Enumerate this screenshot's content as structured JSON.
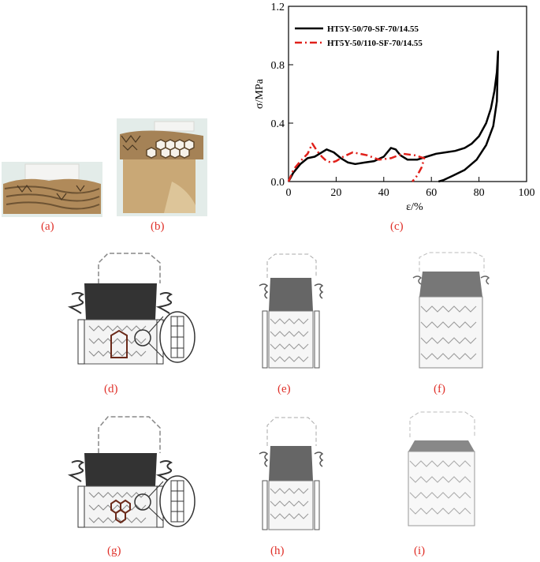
{
  "labels": {
    "a": "(a)",
    "b": "(b)",
    "c": "(c)",
    "d": "(d)",
    "e": "(e)",
    "f": "(f)",
    "g": "(g)",
    "h": "(h)",
    "i": "(i)"
  },
  "colors": {
    "label_red": "#e0312a",
    "series1": "#000000",
    "series2": "#e0201a",
    "cardboard": "#b08a5a"
  },
  "chart_data": {
    "type": "line",
    "title": "",
    "xlabel": "ε/%",
    "ylabel": "σ/MPa",
    "xlim": [
      0,
      100
    ],
    "ylim": [
      0.0,
      1.2
    ],
    "xticks": [
      "0",
      "20",
      "40",
      "60",
      "80",
      "100"
    ],
    "yticks": [
      "0.0",
      "0.4",
      "0.8",
      "1.2"
    ],
    "legend_position": "top-left",
    "grid": false,
    "series": [
      {
        "name": "HT5Y-50/70-SF-70/14.55",
        "style": "solid",
        "points": [
          [
            0,
            0
          ],
          [
            2,
            0.06
          ],
          [
            5,
            0.12
          ],
          [
            8,
            0.16
          ],
          [
            11,
            0.17
          ],
          [
            13,
            0.19
          ],
          [
            16,
            0.22
          ],
          [
            19,
            0.2
          ],
          [
            22,
            0.16
          ],
          [
            25,
            0.13
          ],
          [
            28,
            0.12
          ],
          [
            32,
            0.13
          ],
          [
            36,
            0.14
          ],
          [
            40,
            0.17
          ],
          [
            43,
            0.23
          ],
          [
            45,
            0.22
          ],
          [
            47,
            0.18
          ],
          [
            50,
            0.15
          ],
          [
            54,
            0.15
          ],
          [
            58,
            0.17
          ],
          [
            62,
            0.19
          ],
          [
            66,
            0.2
          ],
          [
            70,
            0.21
          ],
          [
            74,
            0.23
          ],
          [
            77,
            0.26
          ],
          [
            80,
            0.31
          ],
          [
            83,
            0.4
          ],
          [
            85,
            0.5
          ],
          [
            86.5,
            0.62
          ],
          [
            87.5,
            0.75
          ],
          [
            88,
            0.89
          ],
          [
            87.5,
            0.55
          ],
          [
            86,
            0.38
          ],
          [
            83,
            0.25
          ],
          [
            79,
            0.15
          ],
          [
            74,
            0.08
          ],
          [
            69,
            0.04
          ],
          [
            65,
            0.01
          ],
          [
            63,
            0.0
          ]
        ]
      },
      {
        "name": "HT5Y-50/110-SF-70/14.55",
        "style": "dash-dot",
        "points": [
          [
            0,
            0
          ],
          [
            2,
            0.08
          ],
          [
            5,
            0.14
          ],
          [
            8,
            0.19
          ],
          [
            10,
            0.26
          ],
          [
            12,
            0.21
          ],
          [
            14,
            0.17
          ],
          [
            16,
            0.14
          ],
          [
            18,
            0.13
          ],
          [
            20,
            0.14
          ],
          [
            23,
            0.17
          ],
          [
            27,
            0.2
          ],
          [
            33,
            0.18
          ],
          [
            38,
            0.15
          ],
          [
            43,
            0.16
          ],
          [
            48,
            0.19
          ],
          [
            53,
            0.18
          ],
          [
            57,
            0.16
          ],
          [
            56,
            0.1
          ],
          [
            54,
            0.04
          ],
          [
            52,
            0.0
          ]
        ]
      }
    ]
  }
}
